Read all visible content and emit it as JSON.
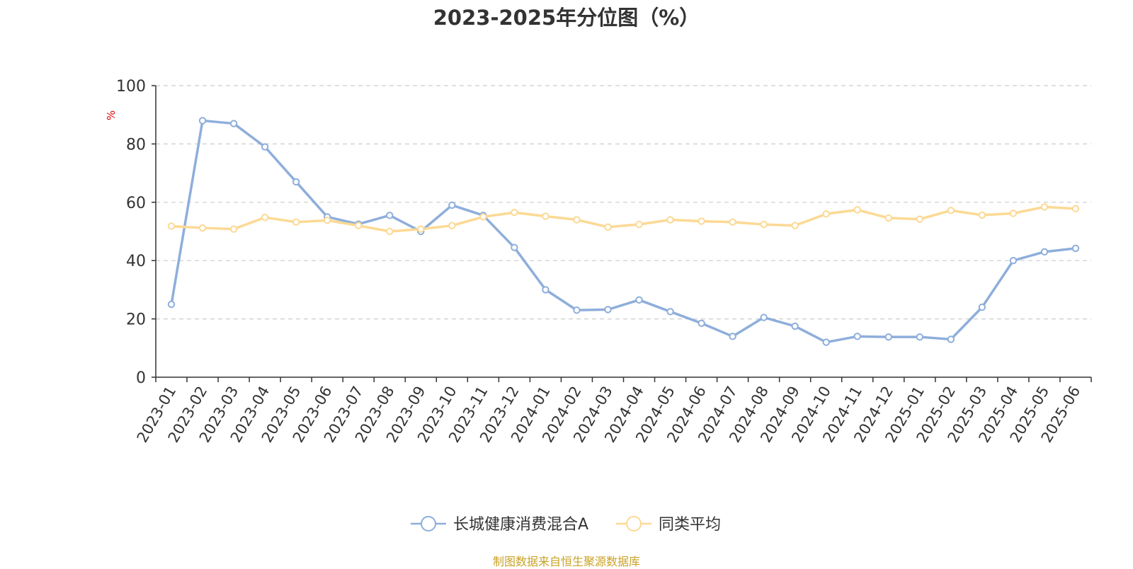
{
  "chart_data": {
    "type": "line",
    "title": "2023-2025年分位图（%）",
    "ylabel": "%",
    "xlabel": "",
    "ylim": [
      0,
      100
    ],
    "yticks": [
      0,
      20,
      40,
      60,
      80,
      100
    ],
    "grid": true,
    "legend_position": "bottom",
    "categories": [
      "2023-01",
      "2023-02",
      "2023-03",
      "2023-04",
      "2023-05",
      "2023-06",
      "2023-07",
      "2023-08",
      "2023-09",
      "2023-10",
      "2023-11",
      "2023-12",
      "2024-01",
      "2024-02",
      "2024-03",
      "2024-04",
      "2024-05",
      "2024-06",
      "2024-07",
      "2024-08",
      "2024-09",
      "2024-10",
      "2024-11",
      "2024-12",
      "2025-01",
      "2025-02",
      "2025-03",
      "2025-04",
      "2025-05",
      "2025-06"
    ],
    "series": [
      {
        "name": "长城健康消费混合A",
        "color": "#8eaedb",
        "values": [
          25,
          88,
          87,
          79,
          67,
          55,
          52.5,
          55.5,
          50,
          59,
          55.5,
          44.5,
          30,
          23,
          23.2,
          26.5,
          22.5,
          18.5,
          14,
          20.5,
          17.5,
          12,
          14,
          13.8,
          13.8,
          13,
          24,
          40,
          43,
          44.2
        ]
      },
      {
        "name": "同类平均",
        "color": "#fcd994",
        "values": [
          51.8,
          51.2,
          50.8,
          54.8,
          53.2,
          53.8,
          52,
          50,
          50.8,
          52,
          55,
          56.5,
          55.2,
          54,
          51.5,
          52.4,
          54,
          53.5,
          53.2,
          52.4,
          52,
          56,
          57.4,
          54.6,
          54.2,
          57.2,
          55.6,
          56.2,
          58.4,
          57.8
        ]
      }
    ]
  },
  "footer": {
    "source": "制图数据来自恒生聚源数据库"
  }
}
